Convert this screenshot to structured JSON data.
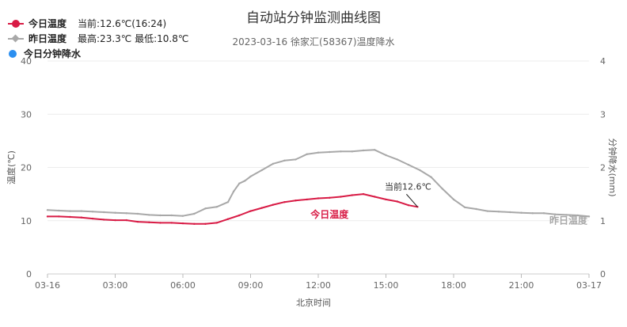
{
  "title": "自动站分钟监测曲线图",
  "subtitle": "2023-03-16 徐家汇(58367)温度降水",
  "legend": [
    {
      "name": "今日温度",
      "info": "当前:12.6℃(16:24)",
      "color": "#d81b45",
      "marker": "dot-line"
    },
    {
      "name": "昨日温度",
      "info": "最高:23.3℃  最低:10.8℃",
      "color": "#a8a8a8",
      "marker": "diamond-line"
    },
    {
      "name": "今日分钟降水",
      "info": "",
      "color": "#2b8ff0",
      "marker": "dot"
    }
  ],
  "chart_data": {
    "type": "line",
    "title": "自动站分钟监测曲线图",
    "subtitle": "2023-03-16 徐家汇(58367)温度降水",
    "xlabel": "北京时间",
    "ylabel": "温度(℃)",
    "y2label": "分钟降水(mm)",
    "x_ticks": [
      "03-16",
      "03:00",
      "06:00",
      "09:00",
      "12:00",
      "15:00",
      "18:00",
      "21:00",
      "03-17"
    ],
    "xlim": [
      0,
      24
    ],
    "ylim": [
      0,
      40
    ],
    "y_ticks": [
      "0",
      "10",
      "20",
      "30",
      "40"
    ],
    "y2lim": [
      0,
      4
    ],
    "y2_ticks": [
      "0",
      "1",
      "2",
      "3",
      "4"
    ],
    "grid": true,
    "legend_position": "top-left",
    "series": [
      {
        "name": "昨日温度",
        "color": "#a8a8a8",
        "axis": "left",
        "x": [
          0,
          0.5,
          1,
          1.5,
          2,
          2.5,
          3,
          3.5,
          4,
          4.5,
          5,
          5.5,
          6,
          6.5,
          7,
          7.5,
          8,
          8.25,
          8.5,
          8.75,
          9,
          9.5,
          10,
          10.5,
          11,
          11.5,
          12,
          12.5,
          13,
          13.5,
          14,
          14.5,
          15,
          15.5,
          16,
          16.5,
          17,
          17.5,
          18,
          18.5,
          19,
          19.5,
          20,
          20.5,
          21,
          21.5,
          22,
          22.5,
          23,
          23.5,
          24
        ],
        "y": [
          12.0,
          11.9,
          11.8,
          11.8,
          11.7,
          11.6,
          11.5,
          11.4,
          11.3,
          11.1,
          11.0,
          11.0,
          10.9,
          11.3,
          12.3,
          12.6,
          13.5,
          15.5,
          17.0,
          17.5,
          18.3,
          19.5,
          20.7,
          21.3,
          21.5,
          22.5,
          22.8,
          22.9,
          23.0,
          23.0,
          23.2,
          23.3,
          22.3,
          21.5,
          20.5,
          19.5,
          18.2,
          16.0,
          14.0,
          12.5,
          12.2,
          11.8,
          11.7,
          11.6,
          11.5,
          11.4,
          11.4,
          11.2,
          11.1,
          11.0,
          10.8
        ]
      },
      {
        "name": "今日温度",
        "color": "#d81b45",
        "axis": "left",
        "x": [
          0,
          0.5,
          1,
          1.5,
          2,
          2.5,
          3,
          3.5,
          4,
          4.5,
          5,
          5.5,
          6,
          6.5,
          7,
          7.5,
          8,
          8.5,
          9,
          9.5,
          10,
          10.5,
          11,
          11.5,
          12,
          12.5,
          13,
          13.5,
          14,
          14.5,
          15,
          15.5,
          16,
          16.4
        ],
        "y": [
          10.8,
          10.8,
          10.7,
          10.6,
          10.4,
          10.2,
          10.1,
          10.1,
          9.8,
          9.7,
          9.6,
          9.6,
          9.5,
          9.4,
          9.4,
          9.6,
          10.3,
          11.0,
          11.8,
          12.4,
          13.0,
          13.5,
          13.8,
          14.0,
          14.2,
          14.3,
          14.5,
          14.8,
          15.0,
          14.5,
          14.0,
          13.6,
          12.9,
          12.6
        ]
      },
      {
        "name": "今日分钟降水",
        "color": "#2b8ff0",
        "axis": "right",
        "x": [],
        "y": []
      }
    ],
    "annotations": [
      {
        "text": "当前12.6℃",
        "x": 16.4,
        "y": 12.6
      },
      {
        "text": "今日温度",
        "color": "#d81b45"
      },
      {
        "text": "昨日温度",
        "color": "#a8a8a8"
      }
    ]
  }
}
